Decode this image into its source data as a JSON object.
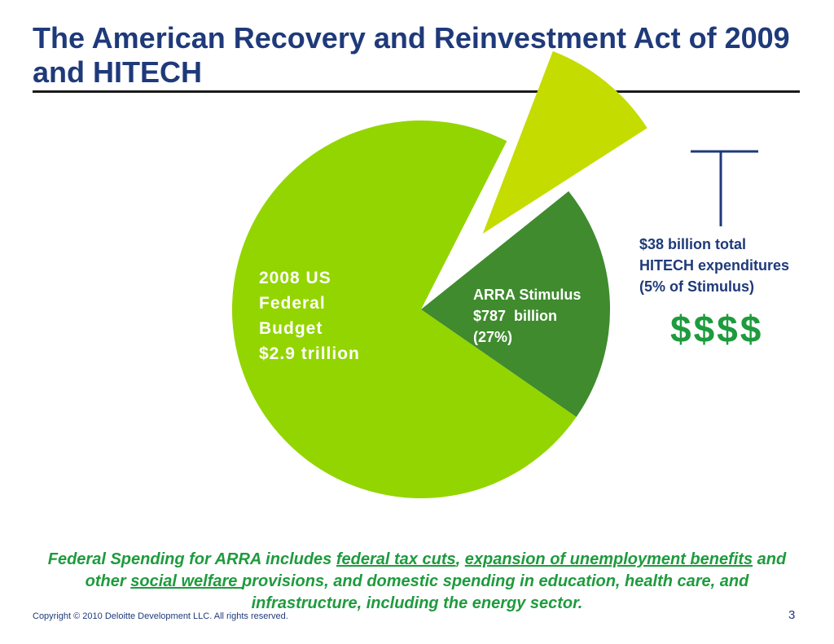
{
  "slide": {
    "title": "The American Recovery and Reinvestment Act of 2009 and HITECH",
    "summary": {
      "parts": [
        {
          "text": "Federal Spending for ARRA includes ",
          "link": false
        },
        {
          "text": "federal tax cuts",
          "link": true
        },
        {
          "text": ", ",
          "link": false
        },
        {
          "text": "expansion of unemployment benefits",
          "link": true
        },
        {
          "text": " and other ",
          "link": false
        },
        {
          "text": "social welfare ",
          "link": true
        },
        {
          "text": "provisions, and domestic spending in education, health care, and infrastructure, including the energy sector.",
          "link": false
        }
      ]
    },
    "copyright": "Copyright © 2010 Deloitte Development LLC. All rights reserved.",
    "page_number": "3"
  },
  "chart_data": {
    "type": "pie",
    "title": "",
    "slices": [
      {
        "name": "2008 US Federal Budget",
        "label_lines": [
          "2008 US",
          "Federal",
          "Budget",
          "$2.9 trillion"
        ],
        "value_billion": 2900,
        "color": "#93d500"
      },
      {
        "name": "ARRA Stimulus",
        "label_lines": [
          "ARRA Stimulus",
          "$787  billion",
          "(27%)"
        ],
        "value_billion": 787,
        "percent_of_budget": 27,
        "color": "#3f8b2e"
      }
    ],
    "exploded_slice": {
      "name": "HITECH",
      "label_lines": [
        "$38 billion total",
        "HITECH expenditures",
        "(5% of Stimulus)"
      ],
      "value_billion": 38,
      "percent_of_stimulus": 5,
      "color": "#c4dc00"
    },
    "callout": {
      "symbol": "$$$$",
      "color": "#1e9b3d"
    }
  }
}
